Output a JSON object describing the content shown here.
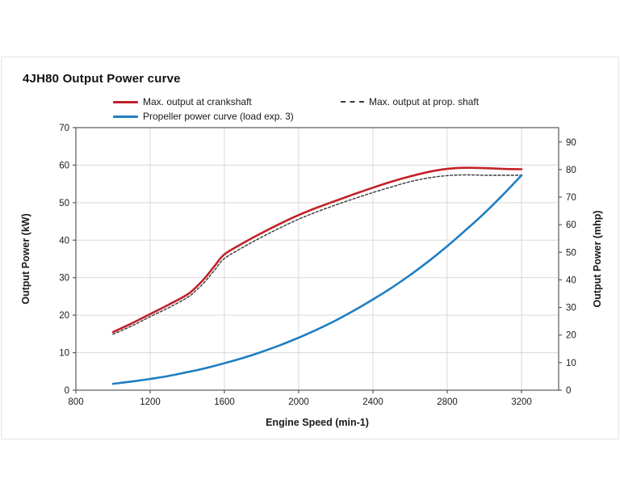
{
  "panel": {
    "title": "4JH80 Output Power curve"
  },
  "colors": {
    "crankshaft_red": "#c32128",
    "propshaft_dash": "#3a3a3a",
    "propeller_blue": "#1f7ec2",
    "gridline": "#d9d9d9",
    "axis_border": "#595959",
    "text": "#1a1a1a"
  },
  "chart_data": {
    "type": "line",
    "title": "4JH80 Output Power curve",
    "xlabel": "Engine Speed (min-1)",
    "ylabel_left": "Output Power (kW)",
    "ylabel_right": "Output Power (mhp)",
    "xlim": [
      800,
      3400
    ],
    "ylim_left": [
      0,
      70
    ],
    "ylim_right": [
      0,
      95.2
    ],
    "x_ticks": [
      800,
      1200,
      1600,
      2000,
      2400,
      2800,
      3200
    ],
    "y_ticks_left": [
      0,
      10,
      20,
      30,
      40,
      50,
      60,
      70
    ],
    "y_ticks_right": [
      0,
      10,
      20,
      30,
      40,
      50,
      60,
      70,
      80,
      90
    ],
    "grid": true,
    "legend_position": "top",
    "series": [
      {
        "name": "Max. output at crankshaft",
        "color": "#c32128",
        "style": "solid",
        "width": 2.6,
        "x": [
          1000,
          1100,
          1200,
          1300,
          1400,
          1450,
          1500,
          1550,
          1600,
          1700,
          1800,
          1900,
          2000,
          2100,
          2200,
          2300,
          2400,
          2500,
          2600,
          2700,
          2800,
          2900,
          3000,
          3100,
          3200
        ],
        "y": [
          15.5,
          17.8,
          20.3,
          22.8,
          25.5,
          27.6,
          30.2,
          33.3,
          36.2,
          39.2,
          41.9,
          44.4,
          46.7,
          48.7,
          50.5,
          52.3,
          54.0,
          55.6,
          57.0,
          58.2,
          59.0,
          59.3,
          59.2,
          59.0,
          58.9
        ]
      },
      {
        "name": "Max. output at prop. shaft",
        "color": "#3a3a3a",
        "style": "dashed",
        "width": 1.4,
        "x": [
          1000,
          1100,
          1200,
          1300,
          1400,
          1450,
          1500,
          1550,
          1600,
          1700,
          1800,
          1900,
          2000,
          2100,
          2200,
          2300,
          2400,
          2500,
          2600,
          2700,
          2800,
          2900,
          3000,
          3100,
          3200
        ],
        "y": [
          14.9,
          17.1,
          19.6,
          22.0,
          24.7,
          26.7,
          29.2,
          32.2,
          35.1,
          38.1,
          40.8,
          43.3,
          45.6,
          47.6,
          49.4,
          51.1,
          52.7,
          54.2,
          55.6,
          56.6,
          57.2,
          57.4,
          57.3,
          57.3,
          57.3
        ]
      },
      {
        "name": "Propeller power curve (load exp. 3)",
        "color": "#1f7ec2",
        "style": "solid",
        "width": 2.6,
        "x": [
          1000,
          1100,
          1200,
          1300,
          1400,
          1500,
          1600,
          1700,
          1800,
          1900,
          2000,
          2100,
          2200,
          2300,
          2400,
          2500,
          2600,
          2700,
          2800,
          2900,
          3000,
          3100,
          3200
        ],
        "y": [
          1.7,
          2.3,
          3.0,
          3.8,
          4.8,
          5.9,
          7.2,
          8.6,
          10.2,
          12.0,
          14.0,
          16.2,
          18.6,
          21.3,
          24.2,
          27.3,
          30.7,
          34.4,
          38.4,
          42.7,
          47.2,
          52.1,
          57.3
        ]
      }
    ]
  }
}
